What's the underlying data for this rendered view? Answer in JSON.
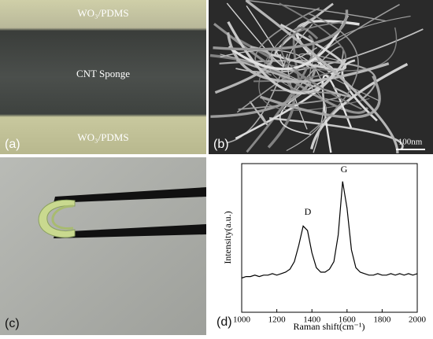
{
  "panels": {
    "a": {
      "label": "(a)",
      "top_layer": "WO₃/PDMS",
      "middle_layer": "CNT Sponge",
      "bottom_layer": "WO₃/PDMS"
    },
    "b": {
      "label": "(b)",
      "scale_bar": "100nm"
    },
    "c": {
      "label": "(c)"
    },
    "d": {
      "label": "(d)"
    }
  },
  "chart_data": {
    "type": "line",
    "xlabel": "Raman shift(cm⁻¹)",
    "ylabel": "Intensity(a.u.)",
    "annotations": [
      "D",
      "G"
    ],
    "x": [
      1000,
      1025,
      1050,
      1075,
      1100,
      1125,
      1150,
      1175,
      1200,
      1225,
      1250,
      1275,
      1300,
      1325,
      1350,
      1375,
      1400,
      1425,
      1450,
      1475,
      1500,
      1525,
      1550,
      1575,
      1600,
      1625,
      1650,
      1675,
      1700,
      1725,
      1750,
      1775,
      1800,
      1825,
      1850,
      1875,
      1900,
      1925,
      1950,
      1975,
      2000
    ],
    "values": [
      0.23,
      0.24,
      0.24,
      0.25,
      0.24,
      0.25,
      0.25,
      0.26,
      0.25,
      0.26,
      0.27,
      0.29,
      0.34,
      0.45,
      0.58,
      0.55,
      0.4,
      0.3,
      0.27,
      0.27,
      0.29,
      0.34,
      0.52,
      0.88,
      0.7,
      0.42,
      0.3,
      0.27,
      0.26,
      0.25,
      0.25,
      0.26,
      0.25,
      0.25,
      0.26,
      0.25,
      0.26,
      0.25,
      0.26,
      0.25,
      0.26
    ],
    "color": "#000000",
    "xlim": [
      1000,
      2000
    ],
    "xticks": [
      1000,
      1200,
      1400,
      1600,
      1800,
      2000
    ],
    "ylim": [
      0,
      1
    ]
  }
}
